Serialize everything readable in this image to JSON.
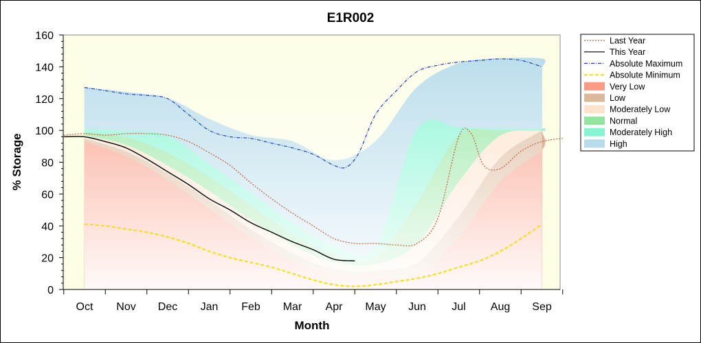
{
  "chart_data": {
    "type": "area",
    "title": "E1R002",
    "xlabel": "Month",
    "ylabel": "% Storage",
    "ylim": [
      0,
      160
    ],
    "yticks": [
      0,
      20,
      40,
      60,
      80,
      100,
      120,
      140,
      160
    ],
    "categories": [
      "Oct",
      "Nov",
      "Dec",
      "Jan",
      "Feb",
      "Mar",
      "Apr",
      "May",
      "Jun",
      "Jul",
      "Aug",
      "Sep"
    ],
    "legend_position": "right",
    "bands": [
      {
        "name": "Very Low",
        "color": "#f99a83",
        "lower": [
          0,
          0,
          0,
          0,
          0,
          0,
          0,
          0,
          0,
          0,
          0,
          0,
          0
        ],
        "upper": [
          93,
          84,
          69,
          51,
          33,
          18,
          9,
          9,
          10,
          33,
          68,
          88,
          99
        ]
      },
      {
        "name": "Low",
        "color": "#dcb89b",
        "lower": [
          93,
          84,
          69,
          51,
          33,
          18,
          9,
          9,
          10,
          33,
          68,
          88,
          99
        ],
        "upper": [
          95,
          87,
          73,
          56,
          38,
          23,
          13,
          12,
          17,
          46,
          83,
          100,
          100
        ]
      },
      {
        "name": "Moderately Low",
        "color": "#fde3cc",
        "lower": [
          95,
          87,
          73,
          56,
          38,
          23,
          13,
          12,
          17,
          46,
          83,
          100,
          100
        ],
        "upper": [
          97,
          91,
          78,
          62,
          44,
          28,
          17,
          16,
          29,
          68,
          97,
          100,
          100
        ]
      },
      {
        "name": "Normal",
        "color": "#93e6a0",
        "lower": [
          97,
          91,
          78,
          62,
          44,
          28,
          17,
          16,
          29,
          68,
          97,
          100,
          100
        ],
        "upper": [
          99,
          96,
          86,
          71,
          53,
          35,
          22,
          21,
          55,
          97,
          100,
          100,
          100
        ]
      },
      {
        "name": "Moderately High",
        "color": "#83f5d2",
        "lower": [
          99,
          96,
          86,
          71,
          53,
          35,
          22,
          21,
          55,
          97,
          100,
          100,
          100
        ],
        "upper": [
          101,
          100,
          97,
          79,
          61,
          42,
          28,
          27,
          101,
          102,
          101,
          101,
          100
        ]
      },
      {
        "name": "High",
        "color": "#b6dbea",
        "lower": [
          101,
          100,
          97,
          79,
          61,
          42,
          28,
          27,
          101,
          102,
          101,
          101,
          100
        ],
        "upper": [
          127,
          124,
          120,
          107,
          97,
          93,
          81,
          93,
          127,
          142,
          145,
          145,
          140
        ]
      }
    ],
    "band_x": [
      0,
      1,
      2,
      3,
      4,
      5,
      6,
      7,
      8,
      9,
      10,
      11,
      11
    ],
    "series": [
      {
        "name": "Last Year",
        "color": "#c05a3a",
        "style": "dotted",
        "x": [
          -0.5,
          0,
          0.5,
          1,
          1.5,
          2,
          2.5,
          3,
          3.5,
          4,
          4.5,
          5,
          5.5,
          6,
          6.5,
          7,
          7.5,
          8,
          8.5,
          9,
          9.3,
          9.6,
          10,
          10.5,
          11,
          11.5
        ],
        "y": [
          97,
          98,
          97,
          98,
          98,
          97,
          93,
          86,
          78,
          67,
          57,
          48,
          40,
          32,
          29,
          29,
          28,
          29,
          45,
          96,
          98,
          78,
          76,
          87,
          93,
          95
        ]
      },
      {
        "name": "This Year",
        "color": "#000000",
        "style": "solid",
        "x": [
          -0.5,
          0,
          0.5,
          1,
          1.5,
          2,
          2.5,
          3,
          3.5,
          4,
          4.5,
          5,
          5.5,
          6,
          6.5
        ],
        "y": [
          96,
          96,
          93,
          89,
          82,
          74,
          66,
          57,
          50,
          42,
          36,
          30,
          25,
          19,
          18
        ]
      },
      {
        "name": "Absolute Maximum",
        "color": "#1a3ccf",
        "style": "dashdot",
        "x": [
          0,
          0.5,
          1,
          1.5,
          2,
          2.5,
          3,
          3.5,
          4,
          4.5,
          5,
          5.5,
          6,
          6.3,
          6.6,
          7,
          7.5,
          8,
          8.5,
          9,
          9.5,
          10,
          10.5,
          11
        ],
        "y": [
          127,
          125,
          123,
          122,
          120,
          110,
          100,
          96,
          95,
          92,
          89,
          85,
          78,
          77,
          86,
          110,
          125,
          137,
          141,
          143,
          144,
          145,
          144,
          140
        ]
      },
      {
        "name": "Absolute Minimum",
        "color": "#f4e000",
        "style": "dashed",
        "x": [
          0,
          0.5,
          1,
          1.5,
          2,
          2.5,
          3,
          3.5,
          4,
          4.5,
          5,
          5.5,
          6,
          6.5,
          7,
          7.5,
          8,
          8.5,
          9,
          9.5,
          10,
          10.5,
          11
        ],
        "y": [
          41,
          40,
          38,
          36,
          33,
          29,
          24,
          20,
          17,
          14,
          10,
          6,
          3,
          2,
          3,
          5,
          7,
          10,
          14,
          18,
          24,
          32,
          41
        ]
      }
    ]
  },
  "legend": [
    {
      "label": "Last Year",
      "kind": "line",
      "color": "#c05a3a",
      "style": "dotted"
    },
    {
      "label": "This Year",
      "kind": "line",
      "color": "#000000",
      "style": "solid"
    },
    {
      "label": "Absolute Maximum",
      "kind": "line",
      "color": "#1a3ccf",
      "style": "dashdot"
    },
    {
      "label": "Absolute Minimum",
      "kind": "line",
      "color": "#f4e000",
      "style": "dashed"
    },
    {
      "label": "Very Low",
      "kind": "patch",
      "color": "#f99a83"
    },
    {
      "label": "Low",
      "kind": "patch",
      "color": "#dcb89b"
    },
    {
      "label": "Moderately Low",
      "kind": "patch",
      "color": "#fde3cc"
    },
    {
      "label": "Normal",
      "kind": "patch",
      "color": "#93e6a0"
    },
    {
      "label": "Moderately High",
      "kind": "patch",
      "color": "#83f5d2"
    },
    {
      "label": "High",
      "kind": "patch",
      "color": "#b6dbea"
    }
  ],
  "colors": {
    "plot_background": "#fdfde6"
  }
}
